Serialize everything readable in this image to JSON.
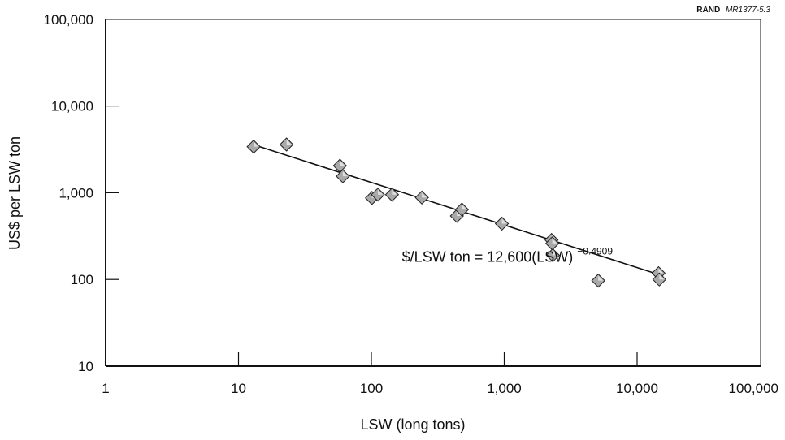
{
  "chart_data": {
    "type": "scatter",
    "title": "",
    "xlabel": "LSW (long tons)",
    "ylabel": "US$ per LSW ton",
    "xscale": "log",
    "yscale": "log",
    "xlim": [
      1,
      100000
    ],
    "ylim": [
      10,
      100000
    ],
    "x_ticks": [
      1,
      10,
      100,
      1000,
      10000,
      100000
    ],
    "x_tick_labels": [
      "1",
      "10",
      "100",
      "1,000",
      "10,000",
      "100,000"
    ],
    "y_ticks": [
      10,
      100,
      1000,
      10000,
      100000
    ],
    "y_tick_labels": [
      "10",
      "100",
      "1,000",
      "10,000",
      "100,000"
    ],
    "grid": false,
    "legend": "none",
    "marker": "diamond",
    "marker_color": "#a9a9a9",
    "points": [
      {
        "x": 13,
        "y": 3400
      },
      {
        "x": 23,
        "y": 3600
      },
      {
        "x": 58,
        "y": 2050
      },
      {
        "x": 61,
        "y": 1550
      },
      {
        "x": 101,
        "y": 870
      },
      {
        "x": 112,
        "y": 950
      },
      {
        "x": 143,
        "y": 950
      },
      {
        "x": 240,
        "y": 880
      },
      {
        "x": 440,
        "y": 540
      },
      {
        "x": 480,
        "y": 640
      },
      {
        "x": 960,
        "y": 440
      },
      {
        "x": 2270,
        "y": 285
      },
      {
        "x": 2300,
        "y": 260
      },
      {
        "x": 2320,
        "y": 190
      },
      {
        "x": 5100,
        "y": 97
      },
      {
        "x": 14500,
        "y": 118
      },
      {
        "x": 14700,
        "y": 100
      }
    ],
    "fit_line": {
      "coefficient": 12600,
      "exponent": -0.4909,
      "x_range": [
        13,
        14800
      ]
    },
    "annotation": {
      "text": "$/LSW ton = 12,600(LSW)",
      "superscript": "−0.4909",
      "at_x": 170,
      "at_y": 160
    },
    "source_label": {
      "bold": "RAND",
      "italic": "MR1377-5.3"
    }
  }
}
